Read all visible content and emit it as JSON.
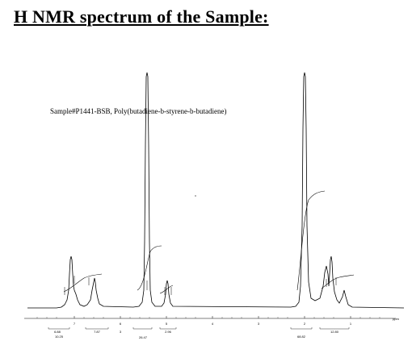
{
  "document": {
    "heading": "H NMR spectrum of the Sample:"
  },
  "spectrum": {
    "sample_label": "Sample#P1441-BSB, Poly(butadiene-b-styrene-b-butadiene)",
    "axis_unit": "ppm",
    "axis_ticks": [
      "7",
      "6",
      "5",
      "4",
      "3",
      "2",
      "1"
    ],
    "integrals_row1": [
      "6.88",
      "7.87",
      "3",
      "2.96",
      "12.80"
    ],
    "integrals_row2": [
      "10.25",
      "26.47",
      "68.82"
    ]
  }
}
